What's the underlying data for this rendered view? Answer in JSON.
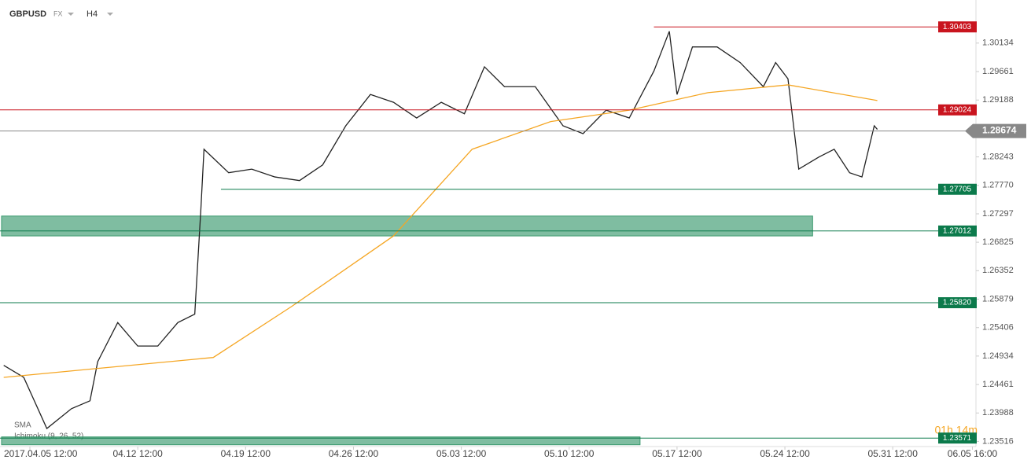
{
  "chart_data": {
    "type": "line",
    "symbol": "GBPUSD",
    "market": "FX",
    "timeframe": "H4",
    "indicators": [
      "SMA",
      "Ichimoku (9, 26, 52)"
    ],
    "timer": "01h 14m",
    "xlim": [
      -1.94,
      61.4
    ],
    "ylim": [
      1.2343,
      1.3085
    ],
    "xticks": [
      {
        "value": 0,
        "label": "2017.04.05 12:00"
      },
      {
        "value": 7,
        "label": "04.12 12:00"
      },
      {
        "value": 14,
        "label": "04.19 12:00"
      },
      {
        "value": 21,
        "label": "04.26 12:00"
      },
      {
        "value": 28,
        "label": "05.03 12:00"
      },
      {
        "value": 35,
        "label": "05.10 12:00"
      },
      {
        "value": 42,
        "label": "05.17 12:00"
      },
      {
        "value": 49,
        "label": "05.24 12:00"
      },
      {
        "value": 56,
        "label": "05.31 12:00"
      },
      {
        "value": 61.17,
        "label": "06.05 16:00"
      }
    ],
    "yticks": [
      1.30134,
      1.29661,
      1.29188,
      1.28243,
      {
        "value": 1.2777,
        "label": "1.27770"
      },
      1.27297,
      1.26825,
      1.26352,
      1.25879,
      1.25406,
      1.24934,
      1.24461,
      1.23988,
      1.23516
    ],
    "series": [
      {
        "name": "GBPUSD",
        "color": "#222222",
        "x": [
          -1.7,
          -0.4,
          1.1,
          2.7,
          3.9,
          4.4,
          5.7,
          7.0,
          8.3,
          9.6,
          10.7,
          11.1,
          11.3,
          12.9,
          14.4,
          15.9,
          17.5,
          19.0,
          20.5,
          22.1,
          23.6,
          25.1,
          26.7,
          28.2,
          29.5,
          30.8,
          32.8,
          34.6,
          35.9,
          37.4,
          38.9,
          40.5,
          41.5,
          42.0,
          43.0,
          44.6,
          46.1,
          47.6,
          48.4,
          49.2,
          49.9,
          51.2,
          52.2,
          53.2,
          54.0,
          54.8,
          55.0
        ],
        "values": [
          1.2478,
          1.2458,
          1.2373,
          1.2406,
          1.2419,
          1.2484,
          1.2549,
          1.251,
          1.251,
          1.2549,
          1.2563,
          1.2739,
          1.2837,
          1.2798,
          1.2804,
          1.2791,
          1.2785,
          1.2811,
          1.2876,
          1.2928,
          1.2915,
          1.2889,
          1.2915,
          1.2896,
          1.2974,
          1.2941,
          1.2941,
          1.2876,
          1.2863,
          1.2902,
          1.2889,
          1.2967,
          1.3033,
          1.2928,
          1.3007,
          1.3007,
          1.2981,
          1.2941,
          1.2981,
          1.2954,
          1.2804,
          1.2824,
          1.2837,
          1.2798,
          1.2791,
          1.2876,
          1.287
        ]
      },
      {
        "name": "SMA",
        "color": "#f5a623",
        "x": [
          -1.7,
          11.9,
          17.0,
          23.6,
          28.7,
          33.8,
          38.9,
          44.0,
          49.2,
          55.0
        ],
        "values": [
          1.2458,
          1.2491,
          1.2576,
          1.2693,
          1.2837,
          1.2883,
          1.2902,
          1.2931,
          1.2944,
          1.2918
        ]
      }
    ],
    "zones": [
      {
        "x": [
          -1.84,
          50.8
        ],
        "range": [
          1.2693,
          1.2726
        ],
        "color": "#3a9a6e"
      },
      {
        "x": [
          -1.84,
          39.6
        ],
        "range": [
          1.2346,
          1.2359
        ],
        "color": "#3a9a6e"
      }
    ],
    "levels": [
      {
        "value": 1.30403,
        "start": 40.5,
        "color": "#c9141e"
      },
      {
        "value": 1.29024,
        "start": -1.94,
        "color": "#c9141e"
      },
      {
        "value": 1.27705,
        "start": 12.4,
        "color": "#0b7a4b"
      },
      {
        "value": 1.27012,
        "start": -1.94,
        "color": "#0b7a4b"
      },
      {
        "value": 1.2582,
        "label": "1.25820",
        "start": -1.94,
        "color": "#0b7a4b"
      },
      {
        "value": 1.23571,
        "start": -1.94,
        "color": "#0b7a4b"
      }
    ],
    "current_price": {
      "value": 1.28674,
      "color": "#888888"
    }
  }
}
